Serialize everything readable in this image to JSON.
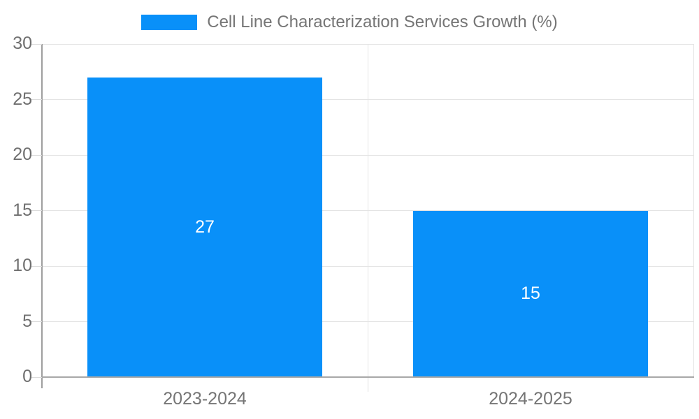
{
  "legend": {
    "label": "Cell Line Characterization Services Growth (%)"
  },
  "chart_data": {
    "type": "bar",
    "title": "Cell Line Characterization Services Growth (%)",
    "categories": [
      "2023-2024",
      "2024-2025"
    ],
    "values": [
      27,
      15
    ],
    "xlabel": "",
    "ylabel": "",
    "ylim": [
      0,
      30
    ],
    "ytick_step": 5,
    "yticks": [
      0,
      5,
      10,
      15,
      20,
      25,
      30
    ],
    "grid": true,
    "legend_position": "top-center",
    "bar_value_labels": [
      "27",
      "15"
    ],
    "colors": {
      "bar": "#0990f9",
      "bar_label": "#ffffff",
      "grid": "#e4e4e4",
      "axis_y": "#9e9e9e",
      "axis_x": "#a8a8a8",
      "tick_text": "#6f6f6f",
      "legend_text": "#757575",
      "background": "#ffffff"
    }
  }
}
